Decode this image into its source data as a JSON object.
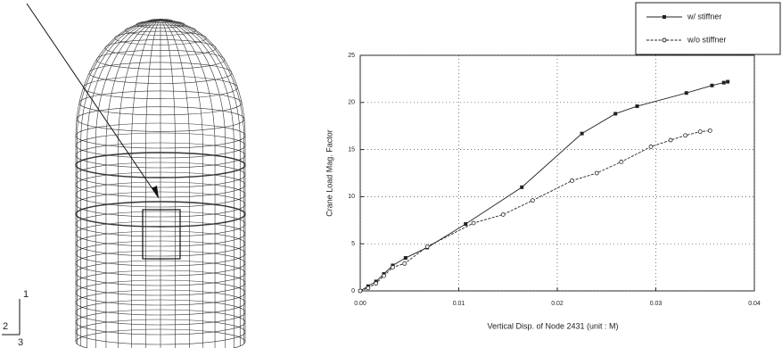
{
  "figure": {
    "axis_labels": [
      "1",
      "2",
      "3"
    ]
  },
  "chart_data": {
    "type": "line",
    "xlabel": "Vertical Disp. of Node 2431 (unit : M)",
    "ylabel": "Crane Load Mag. Factor",
    "xlim": [
      0,
      0.04
    ],
    "xticks": [
      {
        "value": 0,
        "label": "0.00"
      },
      0.01,
      0.02,
      0.03,
      0.04
    ],
    "ylim": [
      0,
      25
    ],
    "yticks": [
      0,
      5,
      10,
      15,
      20,
      25
    ],
    "grid": true,
    "legend": "upper right",
    "series": [
      {
        "name": "w/ stiffner",
        "color": "#222222",
        "marker": "filled-square",
        "x": [
          0,
          0.0008,
          0.0016,
          0.0024,
          0.0033,
          0.0046,
          0.0068,
          0.0107,
          0.0164,
          0.0225,
          0.0259,
          0.0281,
          0.0331,
          0.0357,
          0.0369,
          0.0373
        ],
        "values": [
          0,
          0.5,
          1,
          1.8,
          2.7,
          3.5,
          4.6,
          7.1,
          11,
          16.7,
          18.8,
          19.6,
          21,
          21.8,
          22.1,
          22.2
        ]
      },
      {
        "name": "w/o stiffner",
        "color": "#222222",
        "marker": "open-circle",
        "x": [
          0,
          0.0008,
          0.0016,
          0.0024,
          0.0033,
          0.0045,
          0.0068,
          0.0115,
          0.0145,
          0.0175,
          0.0215,
          0.024,
          0.0265,
          0.0295,
          0.0315,
          0.033,
          0.0345,
          0.0355
        ],
        "values": [
          0,
          0.3,
          0.8,
          1.6,
          2.5,
          2.9,
          4.7,
          7.2,
          8.1,
          9.6,
          11.7,
          12.5,
          13.7,
          15.3,
          16.0,
          16.5,
          16.9,
          17.0
        ]
      }
    ]
  }
}
